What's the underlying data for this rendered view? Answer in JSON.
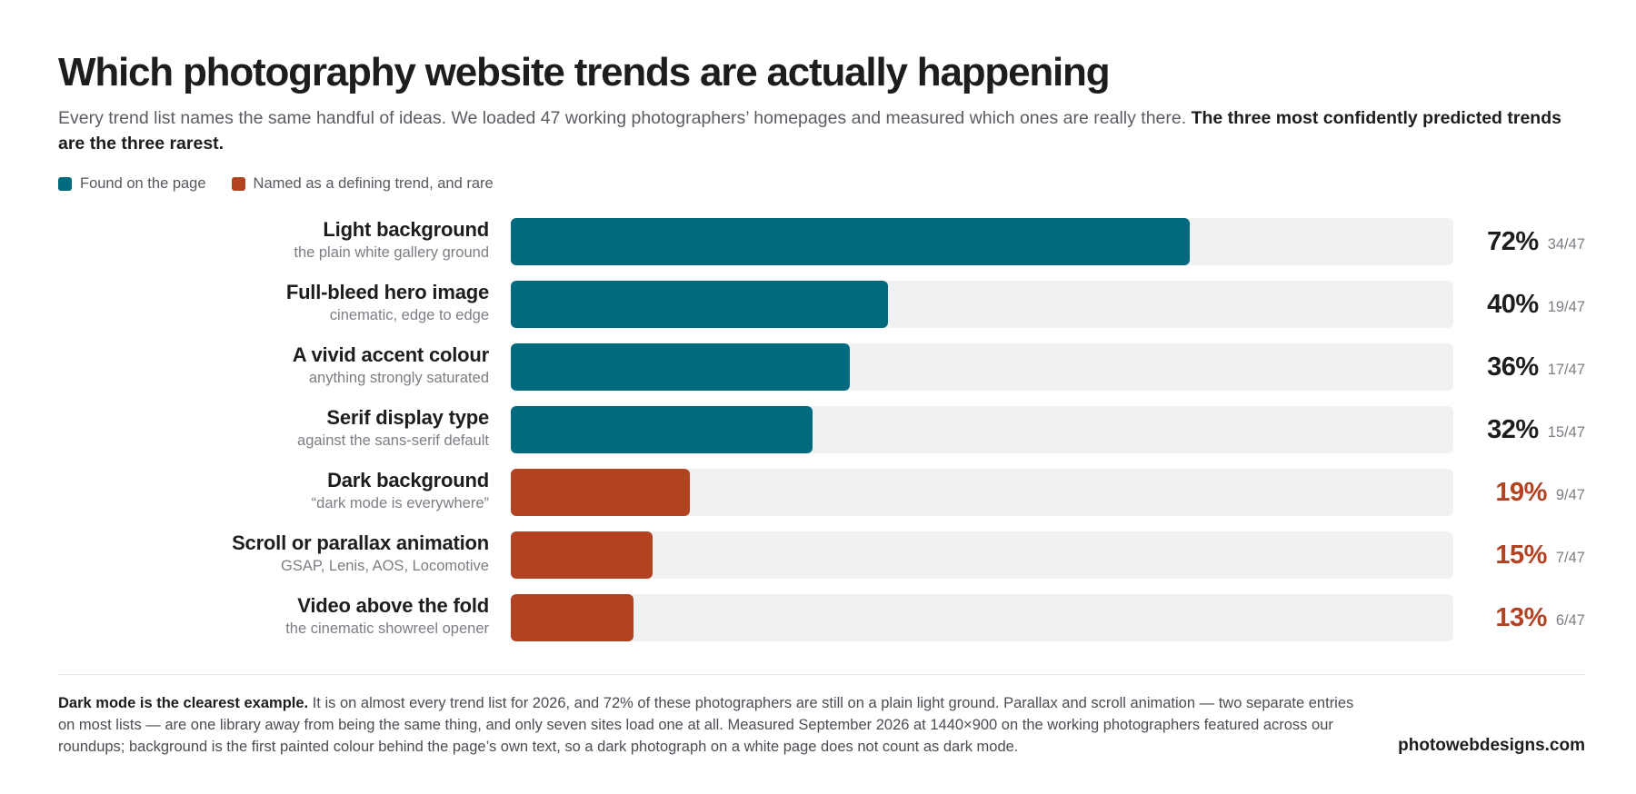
{
  "header": {
    "title": "Which photography website trends are actually happening",
    "subtitle_plain": "Every trend list names the same handful of ideas. We loaded 47 working photographers’ homepages and measured which ones are really there. ",
    "subtitle_bold": "The three most confidently predicted trends are the three rarest."
  },
  "legend": {
    "found_label": "Found on the page",
    "rare_label": "Named as a defining trend, and rare"
  },
  "colors": {
    "found": "#026a7f",
    "rare": "#b24322",
    "track": "#f0f1f2",
    "text_dark": "#1d1d1f"
  },
  "chart_data": {
    "type": "bar",
    "orientation": "horizontal",
    "title": "Which photography website trends are actually happening",
    "xlim": [
      0,
      100
    ],
    "unit": "%",
    "total": 47,
    "categories": [
      "Light background",
      "Full-bleed hero image",
      "A vivid accent colour",
      "Serif display type",
      "Dark background",
      "Scroll or parallax animation",
      "Video above the fold"
    ],
    "subtitles": [
      "the plain white gallery ground",
      "cinematic, edge to edge",
      "anything strongly saturated",
      "against the sans-serif default",
      "“dark mode is everywhere”",
      "GSAP, Lenis, AOS, Locomotive",
      "the cinematic showreel opener"
    ],
    "values": [
      72,
      40,
      36,
      32,
      19,
      15,
      13
    ],
    "value_labels": [
      "72%",
      "40%",
      "36%",
      "32%",
      "19%",
      "15%",
      "13%"
    ],
    "counts": [
      "34/47",
      "19/47",
      "17/47",
      "15/47",
      "9/47",
      "7/47",
      "6/47"
    ],
    "groups": [
      "found",
      "found",
      "found",
      "found",
      "rare",
      "rare",
      "rare"
    ],
    "legend_position": "top-left",
    "grid": false
  },
  "footer": {
    "note_bold": "Dark mode is the clearest example.",
    "note_text": " It is on almost every trend list for 2026, and 72% of these photographers are still on a plain light ground. Parallax and scroll animation — two separate entries on most lists — are one library away from being the same thing, and only seven sites load one at all. Measured September 2026 at 1440×900 on the working photographers featured across our roundups; background is the first painted colour behind the page’s own text, so a dark photograph on a white page does not count as dark mode.",
    "brand": "photowebdesigns.com"
  }
}
